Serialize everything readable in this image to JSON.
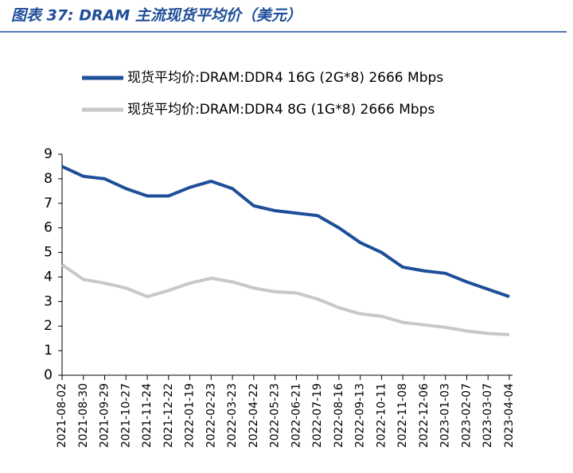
{
  "chart_data": {
    "type": "line",
    "title": "图表 37:  DRAM 主流现货平均价（美元）",
    "categories": [
      "2021-08-02",
      "2021-08-30",
      "2021-09-29",
      "2021-10-27",
      "2021-11-24",
      "2021-12-22",
      "2022-01-19",
      "2022-02-23",
      "2022-03-23",
      "2022-04-22",
      "2022-05-23",
      "2022-06-21",
      "2022-07-19",
      "2022-08-16",
      "2022-09-13",
      "2022-10-11",
      "2022-11-08",
      "2022-12-06",
      "2023-01-03",
      "2023-02-07",
      "2023-03-07",
      "2023-04-04"
    ],
    "series": [
      {
        "name": "现货平均价:DRAM:DDR4 16G (2G*8) 2666 Mbps",
        "color": "#1f4e99",
        "values": [
          8.5,
          8.1,
          8.0,
          7.6,
          7.3,
          7.3,
          7.65,
          7.9,
          7.6,
          6.9,
          6.7,
          6.6,
          6.5,
          6.0,
          5.4,
          5.0,
          4.4,
          4.25,
          4.15,
          3.8,
          3.5,
          3.2
        ]
      },
      {
        "name": "现货平均价:DRAM:DDR4 8G (1G*8) 2666 Mbps",
        "color": "#c8c8c8",
        "values": [
          4.5,
          3.9,
          3.75,
          3.55,
          3.2,
          3.45,
          3.75,
          3.95,
          3.8,
          3.55,
          3.4,
          3.35,
          3.1,
          2.75,
          2.5,
          2.4,
          2.15,
          2.05,
          1.95,
          1.8,
          1.7,
          1.65
        ]
      }
    ],
    "ylim": [
      0,
      9
    ],
    "yticks": [
      0,
      1,
      2,
      3,
      4,
      5,
      6,
      7,
      8,
      9
    ],
    "grid": false
  }
}
